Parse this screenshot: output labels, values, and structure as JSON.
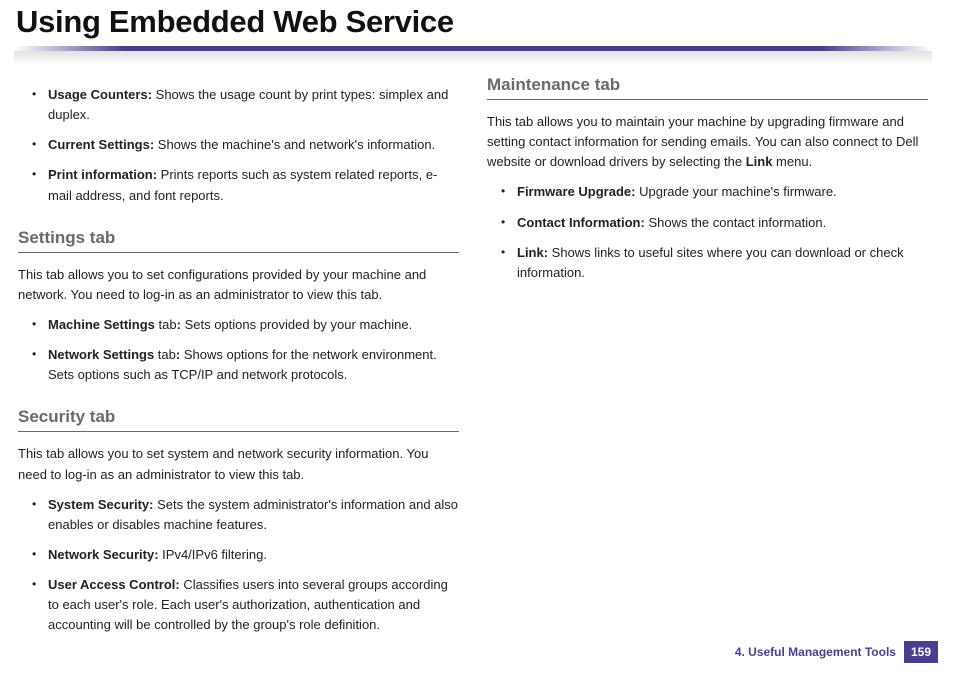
{
  "title": "Using Embedded Web Service",
  "colors": {
    "accent": "#4a3f8f",
    "heading_gray": "#6a6a6a",
    "text": "#222222",
    "background": "#ffffff"
  },
  "left": {
    "top_items": [
      {
        "label": "Usage Counters:",
        "text": " Shows the usage count by print types: simplex and duplex."
      },
      {
        "label": "Current Settings:",
        "text": " Shows the machine's and network's information."
      },
      {
        "label": "Print information:",
        "text": " Prints reports such as system related reports, e-mail address, and font reports."
      }
    ],
    "settings": {
      "heading": "Settings tab",
      "intro": "This tab allows you to set configurations provided by your machine and network. You need to log-in as an administrator to view this tab.",
      "items": [
        {
          "label": "Machine Settings",
          "mid": " tab",
          "colon": ":",
          "text": " Sets options provided by your machine."
        },
        {
          "label": "Network Settings",
          "mid": " tab",
          "colon": ":",
          "text": " Shows options for the network environment. Sets options such as TCP/IP and network protocols."
        }
      ]
    },
    "security": {
      "heading": "Security tab",
      "intro": "This tab allows you to set system and network security information. You need to log-in as an administrator to view this tab.",
      "items": [
        {
          "label": "System Security:",
          "text": " Sets the system administrator's information and also enables or disables machine features."
        },
        {
          "label": "Network Security:",
          "text": " IPv4/IPv6 filtering."
        },
        {
          "label": "User Access Control:",
          "text": " Classifies users into several groups according to each user's role. Each user's authorization, authentication and accounting will be controlled by the group's role definition."
        }
      ]
    }
  },
  "right": {
    "maintenance": {
      "heading": "Maintenance tab",
      "intro_parts": {
        "pre": "This tab allows you to maintain your machine by upgrading firmware and setting contact information for sending emails. You can also connect to Dell website or download drivers by selecting the ",
        "bold": "Link",
        "post": " menu."
      },
      "items": [
        {
          "label": "Firmware Upgrade:",
          "text": " Upgrade your machine's firmware."
        },
        {
          "label": "Contact Information:",
          "text": " Shows the contact information."
        },
        {
          "label": "Link:",
          "text": " Shows links to useful sites where you can download or check information."
        }
      ]
    }
  },
  "footer": {
    "chapter": "4.  Useful Management Tools",
    "page": "159"
  }
}
